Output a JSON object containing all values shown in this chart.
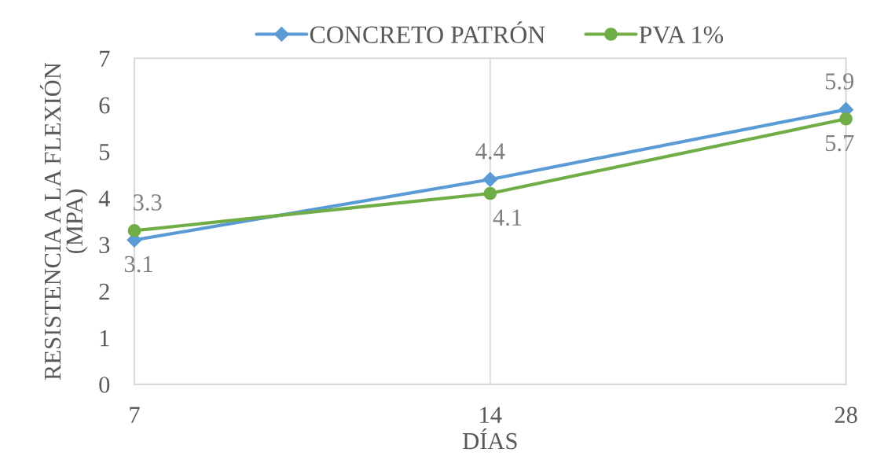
{
  "chart_data": {
    "type": "line",
    "xlabel": "DÍAS",
    "ylabel": "RESISTENCIA A LA FLEXIÓN\n(MPA)",
    "categories": [
      "7",
      "14",
      "28"
    ],
    "series": [
      {
        "name": "CONCRETO PATRÓN",
        "color": "#5b9bd5",
        "marker": "diamond",
        "values": [
          3.1,
          4.4,
          5.9
        ]
      },
      {
        "name": "PVA 1%",
        "color": "#70ad47",
        "marker": "circle",
        "values": [
          3.3,
          4.1,
          5.7
        ]
      }
    ],
    "ylim": [
      0,
      7
    ],
    "yticks": [
      0,
      1,
      2,
      3,
      4,
      5,
      6,
      7
    ],
    "grid": "x",
    "legend": "top",
    "data_labels": true
  }
}
